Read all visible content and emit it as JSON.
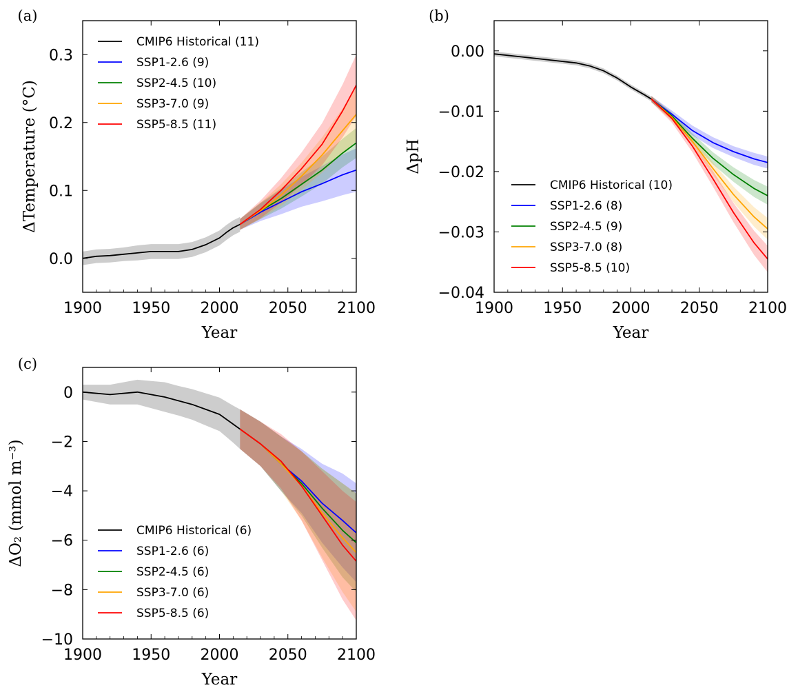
{
  "chart_data": [
    {
      "panel_label": "(a)",
      "type": "line",
      "xlabel": "Year",
      "ylabel": "ΔTemperature (°C)",
      "xlim": [
        1900,
        2100
      ],
      "ylim": [
        -0.05,
        0.35
      ],
      "xticks": [
        1900,
        1950,
        2000,
        2050,
        2100
      ],
      "xtick_labels": [
        "1900",
        "1950",
        "2000",
        "2050",
        "2100"
      ],
      "yticks": [
        0.0,
        0.1,
        0.2,
        0.3
      ],
      "ytick_labels": [
        "0.0",
        "0.1",
        "0.2",
        "0.3"
      ],
      "legend_position": "top-left",
      "grid": false,
      "series": [
        {
          "name": "CMIP6 Historical (11)",
          "color": "#000000",
          "band_color": "#888888",
          "x": [
            1900,
            1910,
            1920,
            1930,
            1940,
            1950,
            1960,
            1970,
            1980,
            1990,
            2000,
            2005,
            2010,
            2015
          ],
          "y": [
            0.0,
            0.003,
            0.004,
            0.006,
            0.008,
            0.01,
            0.01,
            0.01,
            0.013,
            0.02,
            0.03,
            0.038,
            0.045,
            0.05
          ],
          "band": [
            0.01,
            0.01,
            0.01,
            0.01,
            0.011,
            0.011,
            0.011,
            0.011,
            0.011,
            0.011,
            0.011,
            0.011,
            0.011,
            0.011
          ]
        },
        {
          "name": "SSP1-2.6 (9)",
          "color": "#0000ff",
          "band_color": "#0000ff",
          "x": [
            2015,
            2030,
            2045,
            2060,
            2075,
            2090,
            2100
          ],
          "y": [
            0.05,
            0.068,
            0.083,
            0.098,
            0.11,
            0.123,
            0.13
          ],
          "band": [
            0.008,
            0.013,
            0.018,
            0.022,
            0.026,
            0.03,
            0.032
          ]
        },
        {
          "name": "SSP2-4.5 (10)",
          "color": "#008000",
          "band_color": "#008000",
          "x": [
            2015,
            2030,
            2045,
            2060,
            2075,
            2090,
            2100
          ],
          "y": [
            0.05,
            0.07,
            0.088,
            0.109,
            0.13,
            0.155,
            0.17
          ],
          "band": [
            0.008,
            0.012,
            0.015,
            0.018,
            0.02,
            0.021,
            0.022
          ]
        },
        {
          "name": "SSP3-7.0 (9)",
          "color": "#ffa500",
          "band_color": "#ffa500",
          "x": [
            2015,
            2030,
            2045,
            2060,
            2075,
            2090,
            2100
          ],
          "y": [
            0.05,
            0.07,
            0.093,
            0.121,
            0.152,
            0.188,
            0.212
          ],
          "band": [
            0.008,
            0.012,
            0.016,
            0.02,
            0.026,
            0.033,
            0.04
          ]
        },
        {
          "name": "SSP5-8.5 (11)",
          "color": "#ff0000",
          "band_color": "#ff0000",
          "x": [
            2015,
            2030,
            2045,
            2060,
            2075,
            2090,
            2100
          ],
          "y": [
            0.05,
            0.072,
            0.1,
            0.132,
            0.168,
            0.217,
            0.255
          ],
          "band": [
            0.008,
            0.013,
            0.018,
            0.024,
            0.031,
            0.039,
            0.045
          ]
        }
      ]
    },
    {
      "panel_label": "(b)",
      "type": "line",
      "xlabel": "Year",
      "ylabel": "ΔpH",
      "xlim": [
        1900,
        2100
      ],
      "ylim": [
        -0.04,
        0.005
      ],
      "xticks": [
        1900,
        1950,
        2000,
        2050,
        2100
      ],
      "xtick_labels": [
        "1900",
        "1950",
        "2000",
        "2050",
        "2100"
      ],
      "yticks": [
        0.0,
        -0.01,
        -0.02,
        -0.03,
        -0.04
      ],
      "ytick_labels": [
        "0.00",
        "−0.01",
        "−0.02",
        "−0.03",
        "−0.04"
      ],
      "legend_position": "lower-left",
      "grid": false,
      "series": [
        {
          "name": "CMIP6 Historical (10)",
          "color": "#000000",
          "band_color": "#888888",
          "x": [
            1900,
            1920,
            1940,
            1960,
            1970,
            1980,
            1990,
            2000,
            2010,
            2015
          ],
          "y": [
            -0.0005,
            -0.001,
            -0.0015,
            -0.002,
            -0.0025,
            -0.0033,
            -0.0045,
            -0.006,
            -0.0073,
            -0.008
          ],
          "band": [
            0.0004,
            0.0004,
            0.0004,
            0.0004,
            0.0004,
            0.0004,
            0.0004,
            0.0004,
            0.0004,
            0.0004
          ]
        },
        {
          "name": "SSP1-2.6 (8)",
          "color": "#0000ff",
          "band_color": "#0000ff",
          "x": [
            2015,
            2030,
            2045,
            2060,
            2075,
            2090,
            2100
          ],
          "y": [
            -0.008,
            -0.0105,
            -0.0132,
            -0.0152,
            -0.0167,
            -0.0179,
            -0.0185
          ],
          "band": [
            0.0005,
            0.0006,
            0.0008,
            0.0009,
            0.0009,
            0.001,
            0.001
          ]
        },
        {
          "name": "SSP2-4.5 (9)",
          "color": "#008000",
          "band_color": "#008000",
          "x": [
            2015,
            2030,
            2045,
            2060,
            2075,
            2090,
            2100
          ],
          "y": [
            -0.008,
            -0.0108,
            -0.0145,
            -0.0178,
            -0.0205,
            -0.0228,
            -0.024
          ],
          "band": [
            0.0005,
            0.0006,
            0.0008,
            0.001,
            0.0012,
            0.0014,
            0.0015
          ]
        },
        {
          "name": "SSP3-7.0 (8)",
          "color": "#ffa500",
          "band_color": "#ffa500",
          "x": [
            2015,
            2030,
            2045,
            2060,
            2075,
            2090,
            2100
          ],
          "y": [
            -0.008,
            -0.011,
            -0.015,
            -0.0195,
            -0.0238,
            -0.0275,
            -0.0295
          ],
          "band": [
            0.0005,
            0.0006,
            0.0008,
            0.001,
            0.0013,
            0.0016,
            0.0018
          ]
        },
        {
          "name": "SSP5-8.5 (10)",
          "color": "#ff0000",
          "band_color": "#ff0000",
          "x": [
            2015,
            2030,
            2045,
            2060,
            2075,
            2090,
            2100
          ],
          "y": [
            -0.008,
            -0.0112,
            -0.0158,
            -0.0212,
            -0.0268,
            -0.0318,
            -0.0345
          ],
          "band": [
            0.0005,
            0.0007,
            0.001,
            0.0013,
            0.0016,
            0.002,
            0.0022
          ]
        }
      ]
    },
    {
      "panel_label": "(c)",
      "type": "line",
      "xlabel": "Year",
      "ylabel": "ΔO₂ (mmol m⁻³)",
      "xlim": [
        1900,
        2100
      ],
      "ylim": [
        -10,
        1
      ],
      "xticks": [
        1900,
        1950,
        2000,
        2050,
        2100
      ],
      "xtick_labels": [
        "1900",
        "1950",
        "2000",
        "2050",
        "2100"
      ],
      "yticks": [
        0,
        -2,
        -4,
        -6,
        -8,
        -10
      ],
      "ytick_labels": [
        "0",
        "−2",
        "−4",
        "−6",
        "−8",
        "−10"
      ],
      "legend_position": "lower-left",
      "grid": false,
      "series": [
        {
          "name": "CMIP6 Historical (6)",
          "color": "#000000",
          "band_color": "#888888",
          "x": [
            1900,
            1920,
            1940,
            1950,
            1960,
            1970,
            1980,
            1990,
            2000,
            2010,
            2015
          ],
          "y": [
            0.0,
            -0.1,
            0.0,
            -0.1,
            -0.2,
            -0.35,
            -0.5,
            -0.7,
            -0.9,
            -1.3,
            -1.5
          ],
          "band": [
            0.3,
            0.4,
            0.5,
            0.55,
            0.6,
            0.6,
            0.62,
            0.65,
            0.68,
            0.75,
            0.8
          ]
        },
        {
          "name": "SSP1-2.6 (6)",
          "color": "#0000ff",
          "band_color": "#0000ff",
          "x": [
            2015,
            2030,
            2045,
            2060,
            2075,
            2090,
            2100
          ],
          "y": [
            -1.5,
            -2.1,
            -2.9,
            -3.6,
            -4.5,
            -5.2,
            -5.7
          ],
          "band": [
            0.8,
            0.9,
            1.1,
            1.3,
            1.6,
            1.9,
            2.0
          ]
        },
        {
          "name": "SSP2-4.5 (6)",
          "color": "#008000",
          "band_color": "#008000",
          "x": [
            2015,
            2030,
            2045,
            2060,
            2075,
            2090,
            2100
          ],
          "y": [
            -1.5,
            -2.1,
            -2.9,
            -3.7,
            -4.7,
            -5.6,
            -6.1
          ],
          "band": [
            0.8,
            0.9,
            1.1,
            1.3,
            1.6,
            1.9,
            2.0
          ]
        },
        {
          "name": "SSP3-7.0 (6)",
          "color": "#ffa500",
          "band_color": "#ffa500",
          "x": [
            2015,
            2030,
            2045,
            2060,
            2075,
            2090,
            2100
          ],
          "y": [
            -1.5,
            -2.1,
            -2.9,
            -3.8,
            -4.9,
            -5.9,
            -6.5
          ],
          "band": [
            0.8,
            0.9,
            1.1,
            1.4,
            1.8,
            2.2,
            2.4
          ]
        },
        {
          "name": "SSP5-8.5 (6)",
          "color": "#ff0000",
          "band_color": "#ff0000",
          "x": [
            2015,
            2030,
            2045,
            2060,
            2075,
            2090,
            2100
          ],
          "y": [
            -1.5,
            -2.1,
            -2.8,
            -3.8,
            -5.0,
            -6.2,
            -6.85
          ],
          "band": [
            0.8,
            0.9,
            1.1,
            1.4,
            1.8,
            2.2,
            2.4
          ]
        }
      ]
    }
  ]
}
